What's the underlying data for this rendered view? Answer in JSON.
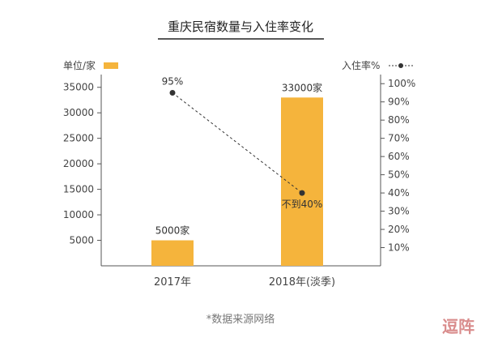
{
  "chart_data": {
    "type": "bar",
    "title": "重庆民宿数量与入住率变化",
    "categories": [
      "2017年",
      "2018年(淡季)"
    ],
    "series": [
      {
        "name": "单位/家",
        "axis": "left",
        "type": "bar",
        "values": [
          5000,
          33000
        ],
        "value_labels": [
          "5000家",
          "33000家"
        ],
        "color": "#f5b43c"
      },
      {
        "name": "入住率%",
        "axis": "right",
        "type": "line",
        "values": [
          95,
          40
        ],
        "value_labels": [
          "95%",
          "不到40%"
        ],
        "color": "#333333",
        "line_style": "dashed"
      }
    ],
    "left_axis": {
      "label": "单位/家",
      "ticks": [
        5000,
        10000,
        15000,
        20000,
        25000,
        30000,
        35000
      ],
      "tick_labels": [
        "5000",
        "10000",
        "15000",
        "20000",
        "25000",
        "30000",
        "35000"
      ],
      "ylim": [
        0,
        37500
      ]
    },
    "right_axis": {
      "label": "入住率%",
      "ticks": [
        10,
        20,
        30,
        40,
        50,
        60,
        70,
        80,
        90,
        100
      ],
      "tick_labels": [
        "10%",
        "20%",
        "30%",
        "40%",
        "50%",
        "60%",
        "70%",
        "80%",
        "90%",
        "100%"
      ],
      "ylim": [
        0,
        105
      ]
    },
    "grid": false,
    "legend": "top"
  },
  "footer": {
    "source": "*数据来源网络",
    "watermark": "逗阵"
  }
}
